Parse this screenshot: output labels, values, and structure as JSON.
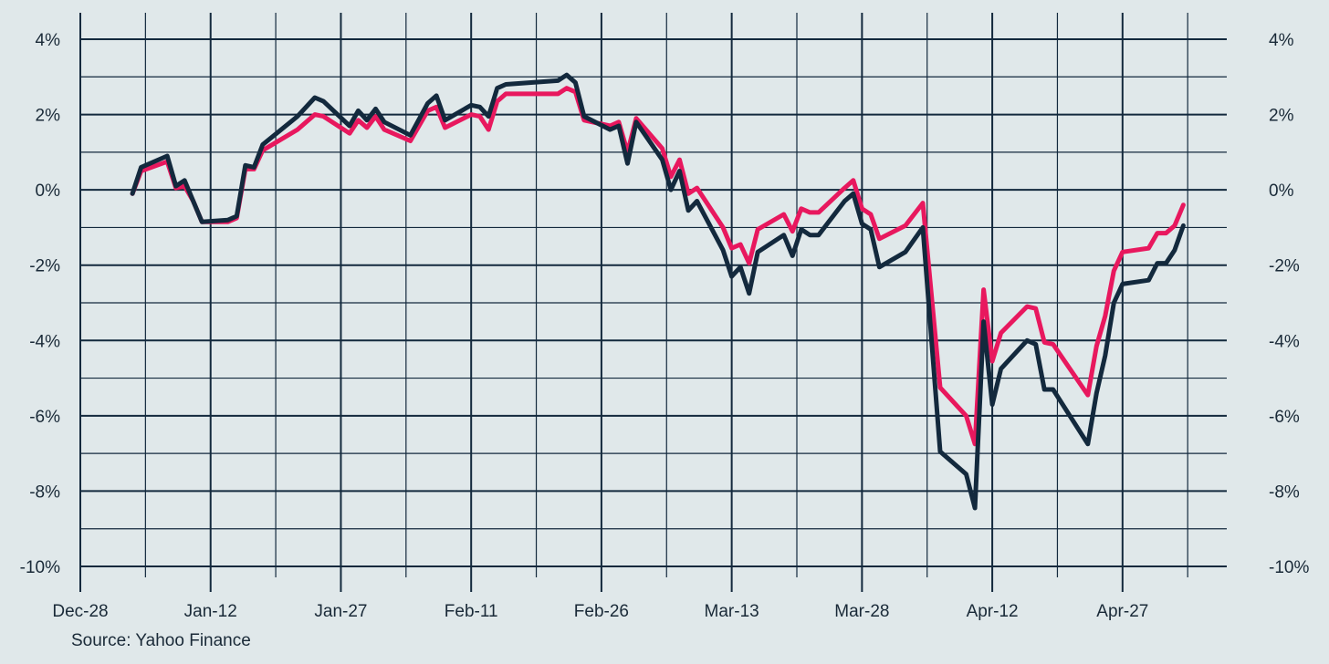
{
  "chart_data": {
    "type": "line",
    "title": "",
    "xlabel": "",
    "ylabel": "",
    "x_tick_labels": [
      "Dec-28",
      "Jan-12",
      "Jan-27",
      "Feb-11",
      "Feb-26",
      "Mar-13",
      "Mar-28",
      "Apr-12",
      "Apr-27"
    ],
    "y_tick_labels": [
      "4%",
      "2%",
      "0%",
      "-2%",
      "-4%",
      "-6%",
      "-8%",
      "-10%"
    ],
    "ylim": [
      -10,
      4
    ],
    "y_unit": "%",
    "grid": true,
    "axes_on_both_sides": true,
    "colors": {
      "background": "#e0e8ea",
      "grid": "#13293d",
      "series_navy": "#13293d",
      "series_pink": "#e8185e"
    },
    "series": [
      {
        "color": "#13293d",
        "points": [
          [
            "2020-01-03",
            -0.1
          ],
          [
            "2020-01-04",
            0.6
          ],
          [
            "2020-01-07",
            0.9
          ],
          [
            "2020-01-08",
            0.1
          ],
          [
            "2020-01-09",
            0.25
          ],
          [
            "2020-01-10",
            -0.3
          ],
          [
            "2020-01-11",
            -0.85
          ],
          [
            "2020-01-14",
            -0.8
          ],
          [
            "2020-01-15",
            -0.7
          ],
          [
            "2020-01-16",
            0.65
          ],
          [
            "2020-01-17",
            0.6
          ],
          [
            "2020-01-18",
            1.2
          ],
          [
            "2020-01-22",
            1.95
          ],
          [
            "2020-01-24",
            2.45
          ],
          [
            "2020-01-25",
            2.35
          ],
          [
            "2020-01-28",
            1.7
          ],
          [
            "2020-01-29",
            2.1
          ],
          [
            "2020-01-30",
            1.85
          ],
          [
            "2020-01-31",
            2.15
          ],
          [
            "2020-02-01",
            1.8
          ],
          [
            "2020-02-04",
            1.45
          ],
          [
            "2020-02-06",
            2.3
          ],
          [
            "2020-02-07",
            2.5
          ],
          [
            "2020-02-08",
            1.85
          ],
          [
            "2020-02-11",
            2.25
          ],
          [
            "2020-02-12",
            2.2
          ],
          [
            "2020-02-13",
            1.95
          ],
          [
            "2020-02-14",
            2.7
          ],
          [
            "2020-02-15",
            2.8
          ],
          [
            "2020-02-21",
            2.9
          ],
          [
            "2020-02-22",
            3.05
          ],
          [
            "2020-02-23",
            2.85
          ],
          [
            "2020-02-24",
            1.95
          ],
          [
            "2020-02-27",
            1.6
          ],
          [
            "2020-02-28",
            1.7
          ],
          [
            "2020-02-29",
            0.7
          ],
          [
            "2020-03-01",
            1.8
          ],
          [
            "2020-03-04",
            0.8
          ],
          [
            "2020-03-05",
            0.0
          ],
          [
            "2020-03-06",
            0.5
          ],
          [
            "2020-03-07",
            -0.55
          ],
          [
            "2020-03-08",
            -0.3
          ],
          [
            "2020-03-11",
            -1.6
          ],
          [
            "2020-03-12",
            -2.3
          ],
          [
            "2020-03-13",
            -2.05
          ],
          [
            "2020-03-14",
            -2.75
          ],
          [
            "2020-03-15",
            -1.65
          ],
          [
            "2020-03-18",
            -1.2
          ],
          [
            "2020-03-19",
            -1.75
          ],
          [
            "2020-03-20",
            -1.05
          ],
          [
            "2020-03-21",
            -1.2
          ],
          [
            "2020-03-22",
            -1.2
          ],
          [
            "2020-03-25",
            -0.3
          ],
          [
            "2020-03-26",
            -0.1
          ],
          [
            "2020-03-27",
            -0.9
          ],
          [
            "2020-03-28",
            -1.05
          ],
          [
            "2020-03-29",
            -2.05
          ],
          [
            "2020-04-01",
            -1.65
          ],
          [
            "2020-04-03",
            -1.0
          ],
          [
            "2020-04-05",
            -6.95
          ],
          [
            "2020-04-08",
            -7.55
          ],
          [
            "2020-04-09",
            -8.45
          ],
          [
            "2020-04-10",
            -3.5
          ],
          [
            "2020-04-11",
            -5.7
          ],
          [
            "2020-04-12",
            -4.75
          ],
          [
            "2020-04-15",
            -4.0
          ],
          [
            "2020-04-16",
            -4.1
          ],
          [
            "2020-04-17",
            -5.3
          ],
          [
            "2020-04-18",
            -5.3
          ],
          [
            "2020-04-22",
            -6.75
          ],
          [
            "2020-04-23",
            -5.4
          ],
          [
            "2020-04-24",
            -4.4
          ],
          [
            "2020-04-25",
            -3.0
          ],
          [
            "2020-04-26",
            -2.5
          ],
          [
            "2020-04-29",
            -2.4
          ],
          [
            "2020-04-30",
            -1.95
          ],
          [
            "2020-05-01",
            -1.95
          ],
          [
            "2020-05-02",
            -1.6
          ],
          [
            "2020-05-03",
            -0.95
          ]
        ]
      },
      {
        "color": "#e8185e",
        "points": [
          [
            "2020-01-03",
            -0.1
          ],
          [
            "2020-01-04",
            0.5
          ],
          [
            "2020-01-07",
            0.75
          ],
          [
            "2020-01-08",
            0.05
          ],
          [
            "2020-01-09",
            0.1
          ],
          [
            "2020-01-10",
            -0.3
          ],
          [
            "2020-01-11",
            -0.85
          ],
          [
            "2020-01-14",
            -0.85
          ],
          [
            "2020-01-15",
            -0.75
          ],
          [
            "2020-01-16",
            0.55
          ],
          [
            "2020-01-17",
            0.55
          ],
          [
            "2020-01-18",
            1.05
          ],
          [
            "2020-01-22",
            1.6
          ],
          [
            "2020-01-24",
            2.0
          ],
          [
            "2020-01-25",
            1.95
          ],
          [
            "2020-01-28",
            1.5
          ],
          [
            "2020-01-29",
            1.85
          ],
          [
            "2020-01-30",
            1.65
          ],
          [
            "2020-01-31",
            1.95
          ],
          [
            "2020-02-01",
            1.6
          ],
          [
            "2020-02-04",
            1.3
          ],
          [
            "2020-02-06",
            2.1
          ],
          [
            "2020-02-07",
            2.2
          ],
          [
            "2020-02-08",
            1.65
          ],
          [
            "2020-02-11",
            2.0
          ],
          [
            "2020-02-12",
            1.95
          ],
          [
            "2020-02-13",
            1.6
          ],
          [
            "2020-02-14",
            2.35
          ],
          [
            "2020-02-15",
            2.55
          ],
          [
            "2020-02-21",
            2.55
          ],
          [
            "2020-02-22",
            2.7
          ],
          [
            "2020-02-23",
            2.6
          ],
          [
            "2020-02-24",
            1.85
          ],
          [
            "2020-02-27",
            1.7
          ],
          [
            "2020-02-28",
            1.8
          ],
          [
            "2020-02-29",
            1.0
          ],
          [
            "2020-03-01",
            1.9
          ],
          [
            "2020-03-04",
            1.1
          ],
          [
            "2020-03-05",
            0.35
          ],
          [
            "2020-03-06",
            0.8
          ],
          [
            "2020-03-07",
            -0.1
          ],
          [
            "2020-03-08",
            0.05
          ],
          [
            "2020-03-11",
            -1.0
          ],
          [
            "2020-03-12",
            -1.55
          ],
          [
            "2020-03-13",
            -1.45
          ],
          [
            "2020-03-14",
            -1.95
          ],
          [
            "2020-03-15",
            -1.05
          ],
          [
            "2020-03-18",
            -0.65
          ],
          [
            "2020-03-19",
            -1.1
          ],
          [
            "2020-03-20",
            -0.5
          ],
          [
            "2020-03-21",
            -0.6
          ],
          [
            "2020-03-22",
            -0.6
          ],
          [
            "2020-03-25",
            0.05
          ],
          [
            "2020-03-26",
            0.25
          ],
          [
            "2020-03-27",
            -0.5
          ],
          [
            "2020-03-28",
            -0.65
          ],
          [
            "2020-03-29",
            -1.3
          ],
          [
            "2020-04-01",
            -0.95
          ],
          [
            "2020-04-03",
            -0.35
          ],
          [
            "2020-04-05",
            -5.25
          ],
          [
            "2020-04-08",
            -6.0
          ],
          [
            "2020-04-09",
            -6.75
          ],
          [
            "2020-04-10",
            -2.65
          ],
          [
            "2020-04-11",
            -4.55
          ],
          [
            "2020-04-12",
            -3.8
          ],
          [
            "2020-04-15",
            -3.1
          ],
          [
            "2020-04-16",
            -3.15
          ],
          [
            "2020-04-17",
            -4.05
          ],
          [
            "2020-04-18",
            -4.1
          ],
          [
            "2020-04-22",
            -5.45
          ],
          [
            "2020-04-23",
            -4.15
          ],
          [
            "2020-04-24",
            -3.35
          ],
          [
            "2020-04-25",
            -2.15
          ],
          [
            "2020-04-26",
            -1.65
          ],
          [
            "2020-04-29",
            -1.55
          ],
          [
            "2020-04-30",
            -1.15
          ],
          [
            "2020-05-01",
            -1.15
          ],
          [
            "2020-05-02",
            -0.95
          ],
          [
            "2020-05-03",
            -0.4
          ]
        ]
      }
    ]
  },
  "source_label": "Source: Yahoo Finance"
}
